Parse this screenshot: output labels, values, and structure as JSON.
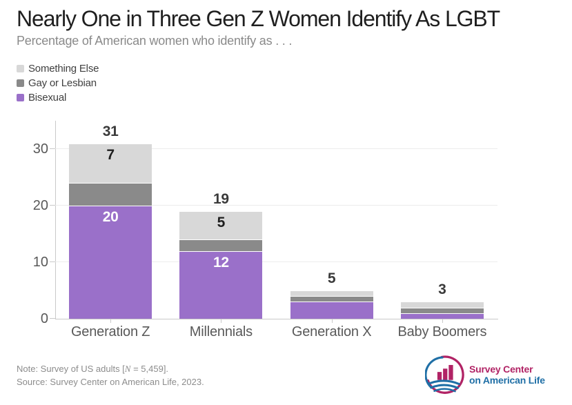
{
  "header": {
    "title": "Nearly One in Three Gen Z Women Identify As LGBT",
    "subtitle": "Percentage of American women who identify as . . ."
  },
  "legend": [
    {
      "label": "Something Else",
      "color": "#d8d8d8"
    },
    {
      "label": "Gay or Lesbian",
      "color": "#8a8a8a"
    },
    {
      "label": "Bisexual",
      "color": "#9a70c9"
    }
  ],
  "chart_data": {
    "type": "bar",
    "stacked": true,
    "title": "Nearly One in Three Gen Z Women Identify As LGBT",
    "subtitle": "Percentage of American women who identify as . . .",
    "categories": [
      "Generation Z",
      "Millennials",
      "Generation X",
      "Baby Boomers"
    ],
    "series": [
      {
        "name": "Bisexual",
        "color": "#9a70c9",
        "label_color": "#ffffff",
        "values": [
          20,
          12,
          3,
          1
        ]
      },
      {
        "name": "Gay or Lesbian",
        "color": "#8a8a8a",
        "label_color": "#1f1f1f",
        "values": [
          4,
          2,
          1,
          1
        ]
      },
      {
        "name": "Something Else",
        "color": "#d8d8d8",
        "label_color": "#1f1f1f",
        "values": [
          7,
          5,
          1,
          1
        ]
      }
    ],
    "totals": [
      31,
      19,
      5,
      3
    ],
    "y_ticks": [
      0,
      10,
      20,
      30
    ],
    "ylim": [
      0,
      35
    ],
    "label_min_value": 5,
    "grid": true,
    "legend_position": "top-left",
    "legend_order_top_to_bottom": [
      "Something Else",
      "Gay or Lesbian",
      "Bisexual"
    ]
  },
  "footer": {
    "note_prefix": "Note: Survey of US adults [",
    "note_italic": "N",
    "note_suffix": " = 5,459].",
    "source": "Source: Survey Center on American Life, 2023.",
    "logo": {
      "line1": "Survey Center",
      "line2": "on American Life"
    }
  },
  "brand": {
    "magenta": "#b12365",
    "blue": "#1f6fa6"
  },
  "icons": {
    "logo_icon": "bar-chart-in-circle-with-field-waves"
  }
}
